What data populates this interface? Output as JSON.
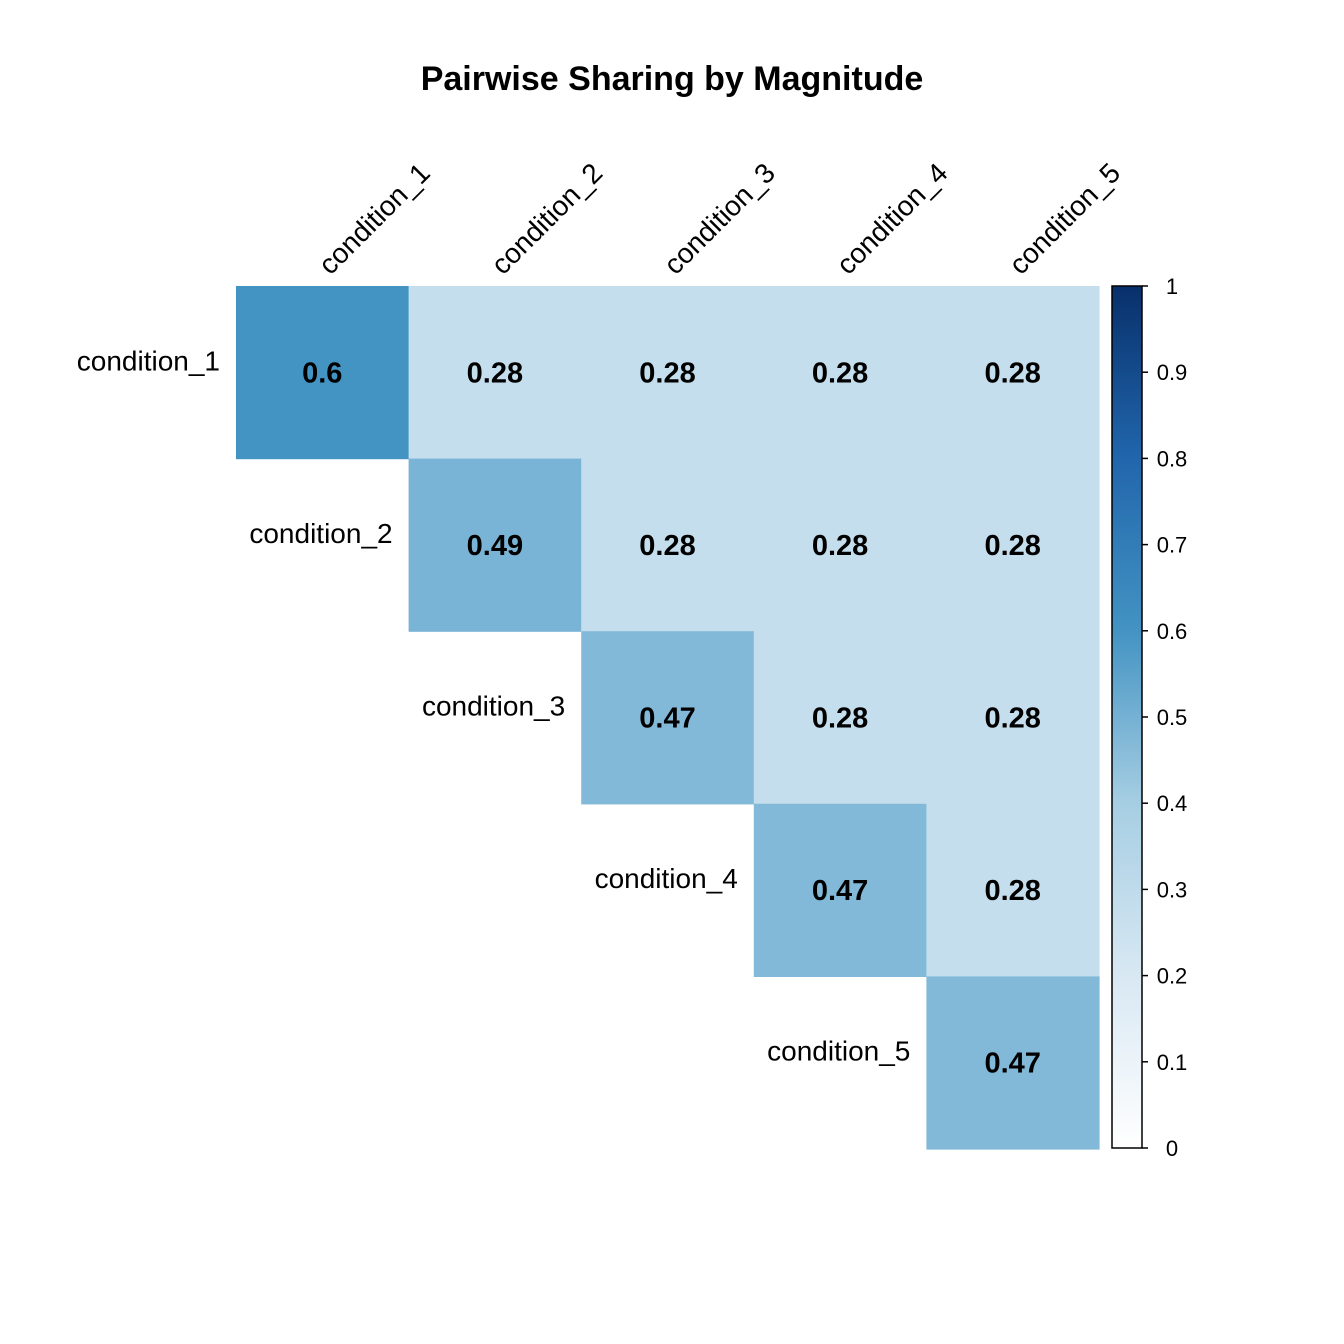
{
  "chart_data": {
    "type": "heatmap",
    "title": "Pairwise Sharing by Magnitude",
    "rows": [
      "condition_1",
      "condition_2",
      "condition_3",
      "condition_4",
      "condition_5"
    ],
    "columns": [
      "condition_1",
      "condition_2",
      "condition_3",
      "condition_4",
      "condition_5"
    ],
    "layout": "upper-triangle",
    "values": [
      [
        0.6,
        0.28,
        0.28,
        0.28,
        0.28
      ],
      [
        null,
        0.49,
        0.28,
        0.28,
        0.28
      ],
      [
        null,
        null,
        0.47,
        0.28,
        0.28
      ],
      [
        null,
        null,
        null,
        0.47,
        0.28
      ],
      [
        null,
        null,
        null,
        null,
        0.47
      ]
    ],
    "colorbar": {
      "min": 0,
      "max": 1,
      "ticks": [
        "0",
        "0.1",
        "0.2",
        "0.3",
        "0.4",
        "0.5",
        "0.6",
        "0.7",
        "0.8",
        "0.9",
        "1"
      ],
      "colors": [
        "#ffffff",
        "#d8e8f3",
        "#a6cee3",
        "#4393c3",
        "#2166ac",
        "#08306b"
      ]
    }
  }
}
